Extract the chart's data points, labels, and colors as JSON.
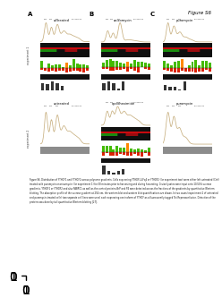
{
  "figure_title": "Figure S6",
  "panel_labels": [
    "A",
    "B",
    "C"
  ],
  "row_labels": [
    "experiment 1",
    "experiment 2"
  ],
  "col_titles_row1": [
    "untreated",
    "anisomycin",
    "puromycin"
  ],
  "col_titles_row2": [
    "untreated",
    "cycloheximide",
    "puromycin"
  ],
  "bg_color": "#ffffff",
  "strip_colors": {
    "black": "#0d0d0d",
    "red": "#cc1100",
    "dark_green_mix": "#111111",
    "gray_light": "#c8c8c8"
  },
  "bar_green": "#44bb00",
  "bar_red": "#dd2200",
  "bar_orange": "#ff8800",
  "curve_color": "#c8b080",
  "caption_fontsize": 1.85,
  "caption_text": "Figure S6. Distribution of YTHDF1 and YTHDF2 across polysome gradients. Cells expressing YTHDF1-4Fq4 or YTHDF2 (for experiment two) were either left untreated (Ctrl) treated with puromycin or anisomycin (for experiment 1) for 30 minutes prior to harvesting and during harvesting. Cruise lysates were input onto 10-50% sucrose gradients. YTHDF1 or YTHDF2 and also PABPC1 as well as the control proteins BrP and P4 were detected across the fractions of the gradients by quantitative Western blotting. The absorption profile of the sucrose gradient at 254 nm, the western blot and western blot quantifications are shown. In two cases (experiment 2 of untreated and puromycin-treated cells) two separate cell lines were used, each expressing one isoform of YTHDF as a fluorescently tagged Tet-Repressor-fusion. Detection of the proteins was done by tail quantitative Western blotting [27]."
}
